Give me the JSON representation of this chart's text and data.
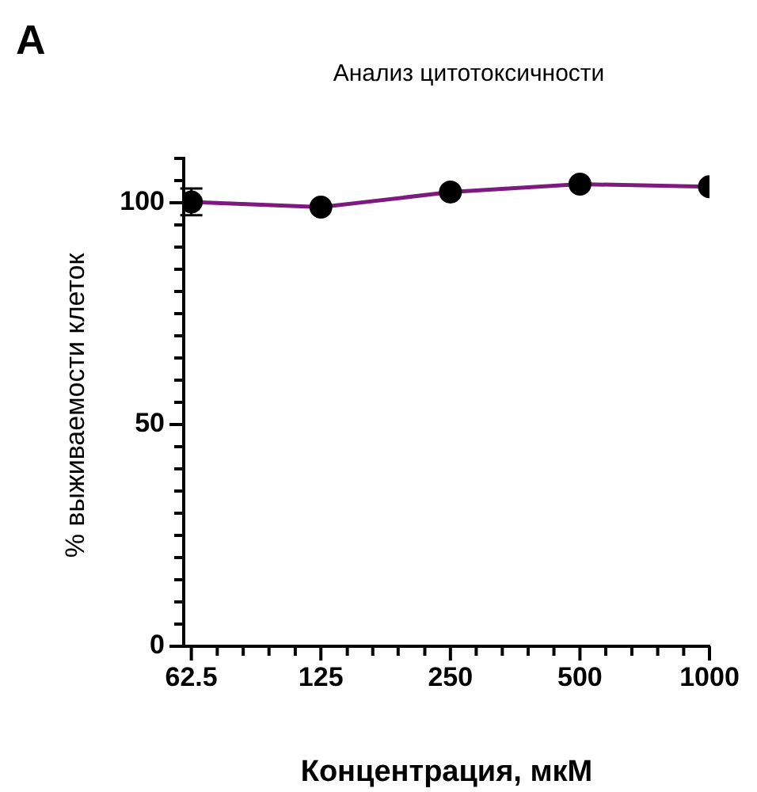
{
  "chart_data": {
    "type": "line",
    "title": "Анализ цитотоксичности",
    "xlabel": "Концентрация, мкМ",
    "ylabel": "% выживаемости клеток",
    "annotations": [
      "A"
    ],
    "log": "x",
    "x": [
      62.5,
      125,
      250,
      500,
      1000
    ],
    "series": [
      {
        "color": "#7d1a80",
        "colors": [
          "#000000",
          "#000000",
          "#000000",
          "#000000",
          "#000000"
        ],
        "values": [
          100.2,
          99,
          102.4,
          104.2,
          103.6
        ],
        "errors": [
          3,
          null,
          null,
          null,
          null
        ]
      }
    ],
    "xlim": [
      60,
      1000
    ],
    "xticks": [
      62.5,
      {
        "value": 71.8,
        "label": null
      },
      {
        "value": 82.5,
        "label": null
      },
      {
        "value": 94.7,
        "label": null
      },
      {
        "value": 109,
        "label": null
      },
      125,
      {
        "value": 144,
        "label": null
      },
      {
        "value": 165,
        "label": null
      },
      {
        "value": 189,
        "label": null
      },
      {
        "value": 218,
        "label": null
      },
      250,
      {
        "value": 287,
        "label": null
      },
      {
        "value": 330,
        "label": null
      },
      {
        "value": 379,
        "label": null
      },
      {
        "value": 435,
        "label": null
      },
      500,
      {
        "value": 574,
        "label": null
      },
      {
        "value": 660,
        "label": null
      },
      {
        "value": 758,
        "label": null
      },
      {
        "value": 871,
        "label": null
      },
      1000
    ],
    "ylim": [
      0,
      110
    ],
    "yticks": [
      0,
      {
        "value": 5,
        "label": null
      },
      {
        "value": 10,
        "label": null
      },
      {
        "value": 15,
        "label": null
      },
      {
        "value": 20,
        "label": null
      },
      {
        "value": 25,
        "label": null
      },
      {
        "value": 30,
        "label": null
      },
      {
        "value": 35,
        "label": null
      },
      {
        "value": 40,
        "label": null
      },
      {
        "value": 45,
        "label": null
      },
      50,
      {
        "value": 55,
        "label": null
      },
      {
        "value": 60,
        "label": null
      },
      {
        "value": 65,
        "label": null
      },
      {
        "value": 70,
        "label": null
      },
      {
        "value": 75,
        "label": null
      },
      {
        "value": 80,
        "label": null
      },
      {
        "value": 85,
        "label": null
      },
      {
        "value": 90,
        "label": null
      },
      {
        "value": 95,
        "label": null
      },
      100,
      {
        "value": 105,
        "label": null
      },
      {
        "value": 110,
        "label": null
      }
    ],
    "marker": "circle",
    "line_style": "solid",
    "grid": false,
    "legend": false
  }
}
